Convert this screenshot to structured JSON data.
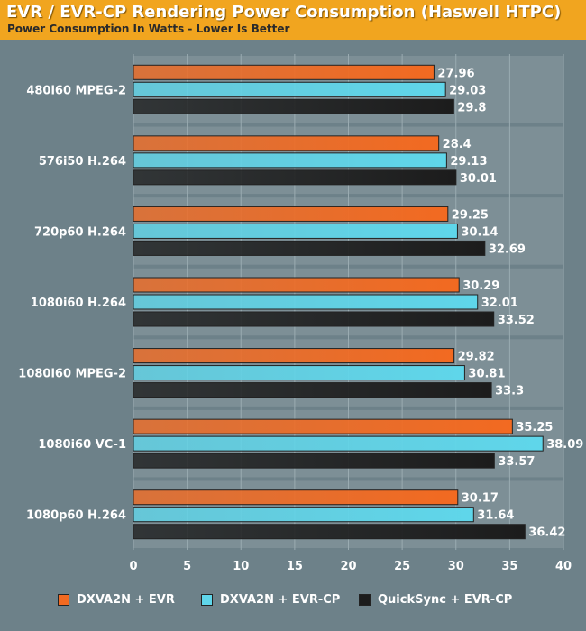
{
  "header": {
    "title": "EVR / EVR-CP Rendering Power Consumption (Haswell HTPC)",
    "subtitle": "Power Consumption In Watts - Lower Is Better"
  },
  "chart_data": {
    "type": "bar",
    "orientation": "horizontal",
    "title": "EVR / EVR-CP Rendering Power Consumption (Haswell HTPC)",
    "subtitle": "Power Consumption In Watts - Lower Is Better",
    "xlabel": "",
    "ylabel": "",
    "xlim": [
      0,
      40
    ],
    "xticks": [
      0,
      5,
      10,
      15,
      20,
      25,
      30,
      35,
      40
    ],
    "grid": true,
    "legend_position": "bottom",
    "categories": [
      "480i60 MPEG-2",
      "576i50 H.264",
      "720p60 H.264",
      "1080i60 H.264",
      "1080i60 MPEG-2",
      "1080i60 VC-1",
      "1080p60 H.264"
    ],
    "series": [
      {
        "name": "DXVA2N + EVR",
        "color": "#f26a21",
        "values": [
          27.96,
          28.4,
          29.25,
          30.29,
          29.82,
          35.25,
          30.17
        ]
      },
      {
        "name": "DXVA2N + EVR-CP",
        "color": "#5fd6ea",
        "values": [
          29.03,
          29.13,
          30.14,
          32.01,
          30.81,
          38.09,
          31.64
        ]
      },
      {
        "name": "QuickSync + EVR-CP",
        "color": "#1c1c1c",
        "values": [
          29.8,
          30.01,
          32.69,
          33.52,
          33.3,
          33.57,
          36.42
        ]
      }
    ]
  }
}
